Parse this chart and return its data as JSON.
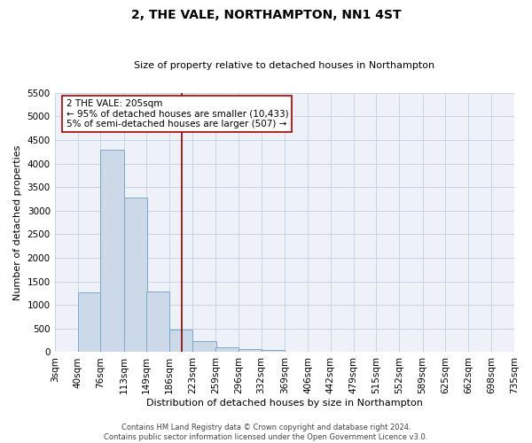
{
  "title": "2, THE VALE, NORTHAMPTON, NN1 4ST",
  "subtitle": "Size of property relative to detached houses in Northampton",
  "xlabel": "Distribution of detached houses by size in Northampton",
  "ylabel": "Number of detached properties",
  "bar_left_edges": [
    3,
    40,
    76,
    113,
    149,
    186,
    223,
    259,
    296,
    332,
    369,
    406,
    442,
    479,
    515,
    552,
    589,
    625,
    662,
    698
  ],
  "bar_heights": [
    0,
    1270,
    4300,
    3280,
    1290,
    480,
    230,
    100,
    60,
    40,
    0,
    0,
    0,
    0,
    0,
    0,
    0,
    0,
    0,
    0
  ],
  "bin_width": 37,
  "bar_color": "#ccd9e8",
  "bar_edge_color": "#7aaac8",
  "vertical_line_x": 205,
  "vertical_line_color": "#8b0000",
  "annotation_text_line1": "2 THE VALE: 205sqm",
  "annotation_text_line2": "← 95% of detached houses are smaller (10,433)",
  "annotation_text_line3": "5% of semi-detached houses are larger (507) →",
  "annotation_box_facecolor": "#ffffff",
  "annotation_box_edgecolor": "#aa0000",
  "x_tick_labels": [
    "3sqm",
    "40sqm",
    "76sqm",
    "113sqm",
    "149sqm",
    "186sqm",
    "223sqm",
    "259sqm",
    "296sqm",
    "332sqm",
    "369sqm",
    "406sqm",
    "442sqm",
    "479sqm",
    "515sqm",
    "552sqm",
    "589sqm",
    "625sqm",
    "662sqm",
    "698sqm",
    "735sqm"
  ],
  "x_tick_positions": [
    3,
    40,
    76,
    113,
    149,
    186,
    223,
    259,
    296,
    332,
    369,
    406,
    442,
    479,
    515,
    552,
    589,
    625,
    662,
    698,
    735
  ],
  "y_tick_values": [
    0,
    500,
    1000,
    1500,
    2000,
    2500,
    3000,
    3500,
    4000,
    4500,
    5000,
    5500
  ],
  "ylim": [
    0,
    5500
  ],
  "xlim": [
    3,
    735
  ],
  "grid_color": "#c8d4e4",
  "axes_background": "#eef2f8",
  "footer_line1": "Contains HM Land Registry data © Crown copyright and database right 2024.",
  "footer_line2": "Contains public sector information licensed under the Open Government Licence v3.0.",
  "title_fontsize": 10,
  "subtitle_fontsize": 8,
  "xlabel_fontsize": 8,
  "ylabel_fontsize": 8,
  "tick_fontsize": 7.5,
  "annotation_fontsize": 7.5,
  "footer_fontsize": 6
}
